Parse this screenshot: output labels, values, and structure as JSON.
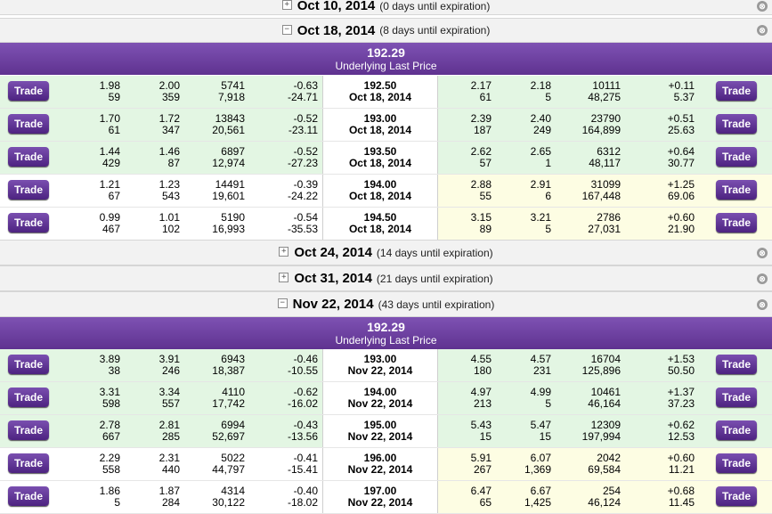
{
  "colors": {
    "itm_green": "#e3f6e3",
    "otm_yellow": "#fdfde3",
    "purple": "#6c3fa0"
  },
  "headers": [
    {
      "date": "Oct 10, 2014",
      "days": "(0 days until expiration)",
      "toggle": "+"
    },
    {
      "date": "Oct 18, 2014",
      "days": "(8 days until expiration)",
      "toggle": "−"
    },
    {
      "date": "Oct 24, 2014",
      "days": "(14 days until expiration)",
      "toggle": "+"
    },
    {
      "date": "Oct 31, 2014",
      "days": "(21 days until expiration)",
      "toggle": "+"
    },
    {
      "date": "Nov 22, 2014",
      "days": "(43 days until expiration)",
      "toggle": "−"
    }
  ],
  "underlying": [
    {
      "price": "192.29",
      "label": "Underlying Last Price"
    },
    {
      "price": "192.29",
      "label": "Underlying Last Price"
    }
  ],
  "trade_label": "Trade",
  "close_icon": "⊗",
  "oct18_rows": [
    {
      "c_bid": "1.98",
      "c_bid_size": "59",
      "c_ask": "2.00",
      "c_ask_size": "359",
      "c_vol": "5741",
      "c_oi": "7,918",
      "c_chg": "-0.63",
      "c_pct": "-24.71",
      "strike": "192.50",
      "exp": "Oct 18, 2014",
      "p_bid": "2.17",
      "p_bid_size": "61",
      "p_ask": "2.18",
      "p_ask_size": "5",
      "p_vol": "10111",
      "p_oi": "48,275",
      "p_chg": "+0.11",
      "p_pct": "5.37"
    },
    {
      "c_bid": "1.70",
      "c_bid_size": "61",
      "c_ask": "1.72",
      "c_ask_size": "347",
      "c_vol": "13843",
      "c_oi": "20,561",
      "c_chg": "-0.52",
      "c_pct": "-23.11",
      "strike": "193.00",
      "exp": "Oct 18, 2014",
      "p_bid": "2.39",
      "p_bid_size": "187",
      "p_ask": "2.40",
      "p_ask_size": "249",
      "p_vol": "23790",
      "p_oi": "164,899",
      "p_chg": "+0.51",
      "p_pct": "25.63"
    },
    {
      "c_bid": "1.44",
      "c_bid_size": "429",
      "c_ask": "1.46",
      "c_ask_size": "87",
      "c_vol": "6897",
      "c_oi": "12,974",
      "c_chg": "-0.52",
      "c_pct": "-27.23",
      "strike": "193.50",
      "exp": "Oct 18, 2014",
      "p_bid": "2.62",
      "p_bid_size": "57",
      "p_ask": "2.65",
      "p_ask_size": "1",
      "p_vol": "6312",
      "p_oi": "48,117",
      "p_chg": "+0.64",
      "p_pct": "30.77"
    },
    {
      "c_bid": "1.21",
      "c_bid_size": "67",
      "c_ask": "1.23",
      "c_ask_size": "543",
      "c_vol": "14491",
      "c_oi": "19,601",
      "c_chg": "-0.39",
      "c_pct": "-24.22",
      "strike": "194.00",
      "exp": "Oct 18, 2014",
      "p_bid": "2.88",
      "p_bid_size": "55",
      "p_ask": "2.91",
      "p_ask_size": "6",
      "p_vol": "31099",
      "p_oi": "167,448",
      "p_chg": "+1.25",
      "p_pct": "69.06"
    },
    {
      "c_bid": "0.99",
      "c_bid_size": "467",
      "c_ask": "1.01",
      "c_ask_size": "102",
      "c_vol": "5190",
      "c_oi": "16,993",
      "c_chg": "-0.54",
      "c_pct": "-35.53",
      "strike": "194.50",
      "exp": "Oct 18, 2014",
      "p_bid": "3.15",
      "p_bid_size": "89",
      "p_ask": "3.21",
      "p_ask_size": "5",
      "p_vol": "2786",
      "p_oi": "27,031",
      "p_chg": "+0.60",
      "p_pct": "21.90"
    }
  ],
  "nov22_rows": [
    {
      "c_bid": "3.89",
      "c_bid_size": "38",
      "c_ask": "3.91",
      "c_ask_size": "246",
      "c_vol": "6943",
      "c_oi": "18,387",
      "c_chg": "-0.46",
      "c_pct": "-10.55",
      "strike": "193.00",
      "exp": "Nov 22, 2014",
      "p_bid": "4.55",
      "p_bid_size": "180",
      "p_ask": "4.57",
      "p_ask_size": "231",
      "p_vol": "16704",
      "p_oi": "125,896",
      "p_chg": "+1.53",
      "p_pct": "50.50"
    },
    {
      "c_bid": "3.31",
      "c_bid_size": "598",
      "c_ask": "3.34",
      "c_ask_size": "557",
      "c_vol": "4110",
      "c_oi": "17,742",
      "c_chg": "-0.62",
      "c_pct": "-16.02",
      "strike": "194.00",
      "exp": "Nov 22, 2014",
      "p_bid": "4.97",
      "p_bid_size": "213",
      "p_ask": "4.99",
      "p_ask_size": "5",
      "p_vol": "10461",
      "p_oi": "46,164",
      "p_chg": "+1.37",
      "p_pct": "37.23"
    },
    {
      "c_bid": "2.78",
      "c_bid_size": "667",
      "c_ask": "2.81",
      "c_ask_size": "285",
      "c_vol": "6994",
      "c_oi": "52,697",
      "c_chg": "-0.43",
      "c_pct": "-13.56",
      "strike": "195.00",
      "exp": "Nov 22, 2014",
      "p_bid": "5.43",
      "p_bid_size": "15",
      "p_ask": "5.47",
      "p_ask_size": "15",
      "p_vol": "12309",
      "p_oi": "197,994",
      "p_chg": "+0.62",
      "p_pct": "12.53"
    },
    {
      "c_bid": "2.29",
      "c_bid_size": "558",
      "c_ask": "2.31",
      "c_ask_size": "440",
      "c_vol": "5022",
      "c_oi": "44,797",
      "c_chg": "-0.41",
      "c_pct": "-15.41",
      "strike": "196.00",
      "exp": "Nov 22, 2014",
      "p_bid": "5.91",
      "p_bid_size": "267",
      "p_ask": "6.07",
      "p_ask_size": "1,369",
      "p_vol": "2042",
      "p_oi": "69,584",
      "p_chg": "+0.60",
      "p_pct": "11.21"
    },
    {
      "c_bid": "1.86",
      "c_bid_size": "5",
      "c_ask": "1.87",
      "c_ask_size": "284",
      "c_vol": "4314",
      "c_oi": "30,122",
      "c_chg": "-0.40",
      "c_pct": "-18.02",
      "strike": "197.00",
      "exp": "Nov 22, 2014",
      "p_bid": "6.47",
      "p_bid_size": "65",
      "p_ask": "6.67",
      "p_ask_size": "1,425",
      "p_vol": "254",
      "p_oi": "46,124",
      "p_chg": "+0.68",
      "p_pct": "11.45"
    }
  ]
}
